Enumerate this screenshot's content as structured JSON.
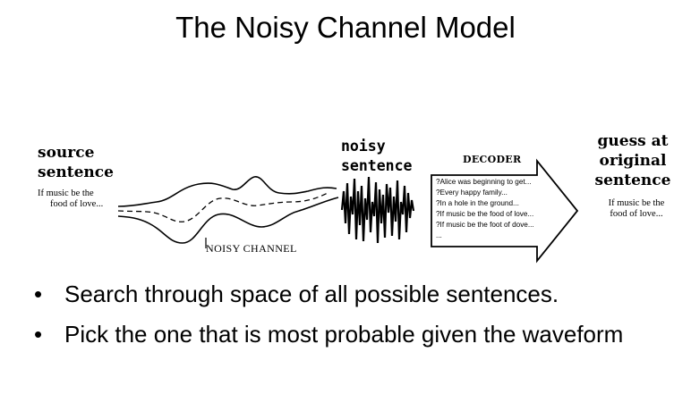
{
  "title": "The Noisy Channel Model",
  "source": {
    "heading_line1": "source",
    "heading_line2": "sentence",
    "text_line1": "If music be the",
    "text_line2": "food of love..."
  },
  "channel": {
    "label": "NOISY CHANNEL"
  },
  "noisy": {
    "heading_line1": "noisy",
    "heading_line2": "sentence"
  },
  "decoder": {
    "label": "DECODER",
    "candidates": [
      "?Alice was beginning to get...",
      "?Every happy family...",
      "?In a hole in the ground...",
      "?If music be the food of love...",
      "?If music be the foot of dove...",
      "..."
    ]
  },
  "guess": {
    "heading_line1": "guess at",
    "heading_line2": "original",
    "heading_line3": "sentence",
    "text_line1": "If music be the",
    "text_line2": "food of love..."
  },
  "bullets": [
    "Search through space of all possible sentences.",
    "Pick the one that is most probable given the waveform"
  ],
  "bullet_symbol": "•"
}
